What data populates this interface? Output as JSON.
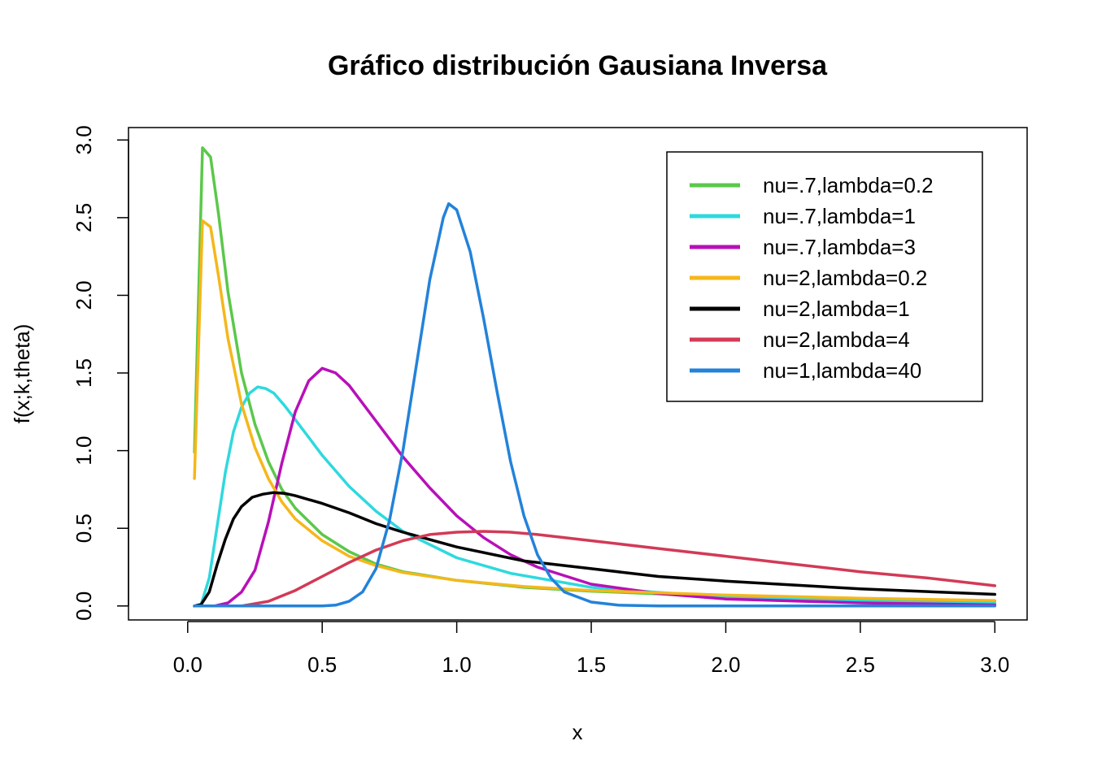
{
  "chart_data": {
    "type": "line",
    "title": "Gráfico distribución Gausiana Inversa",
    "xlabel": "x",
    "ylabel": "f(x;k,theta)",
    "xlim": [
      -0.22,
      3.12
    ],
    "ylim": [
      -0.09,
      3.08
    ],
    "x_ticks": [
      "0.0",
      "0.5",
      "1.0",
      "1.5",
      "2.0",
      "2.5",
      "3.0"
    ],
    "y_ticks": [
      "0.0",
      "0.5",
      "1.0",
      "1.5",
      "2.0",
      "2.5",
      "3.0"
    ],
    "grid": false,
    "legend_position": "top-right",
    "series": [
      {
        "name": "nu=.7,lambda=0.2",
        "color": "#5BC84A",
        "points": [
          [
            0.025,
            0.99
          ],
          [
            0.055,
            2.95
          ],
          [
            0.085,
            2.89
          ],
          [
            0.115,
            2.52
          ],
          [
            0.15,
            2.02
          ],
          [
            0.2,
            1.5
          ],
          [
            0.25,
            1.17
          ],
          [
            0.3,
            0.93
          ],
          [
            0.35,
            0.75
          ],
          [
            0.4,
            0.63
          ],
          [
            0.5,
            0.46
          ],
          [
            0.6,
            0.35
          ],
          [
            0.7,
            0.27
          ],
          [
            0.8,
            0.22
          ],
          [
            1.0,
            0.165
          ],
          [
            1.25,
            0.12
          ],
          [
            1.5,
            0.095
          ],
          [
            2.0,
            0.06
          ],
          [
            2.5,
            0.04
          ],
          [
            3.0,
            0.03
          ]
        ]
      },
      {
        "name": "nu=.7,lambda=1",
        "color": "#2ED9DE",
        "points": [
          [
            0.025,
            0.0
          ],
          [
            0.05,
            0.01
          ],
          [
            0.08,
            0.18
          ],
          [
            0.11,
            0.52
          ],
          [
            0.14,
            0.86
          ],
          [
            0.17,
            1.12
          ],
          [
            0.2,
            1.28
          ],
          [
            0.23,
            1.37
          ],
          [
            0.26,
            1.41
          ],
          [
            0.29,
            1.4
          ],
          [
            0.32,
            1.37
          ],
          [
            0.36,
            1.29
          ],
          [
            0.4,
            1.2
          ],
          [
            0.5,
            0.97
          ],
          [
            0.6,
            0.77
          ],
          [
            0.7,
            0.61
          ],
          [
            0.8,
            0.48
          ],
          [
            1.0,
            0.31
          ],
          [
            1.2,
            0.21
          ],
          [
            1.5,
            0.12
          ],
          [
            2.0,
            0.055
          ],
          [
            2.5,
            0.03
          ],
          [
            3.0,
            0.015
          ]
        ]
      },
      {
        "name": "nu=.7,lambda=3",
        "color": "#B810B8",
        "points": [
          [
            0.025,
            0.0
          ],
          [
            0.1,
            0.0
          ],
          [
            0.15,
            0.02
          ],
          [
            0.2,
            0.09
          ],
          [
            0.25,
            0.23
          ],
          [
            0.3,
            0.54
          ],
          [
            0.35,
            0.92
          ],
          [
            0.4,
            1.25
          ],
          [
            0.45,
            1.45
          ],
          [
            0.5,
            1.53
          ],
          [
            0.55,
            1.5
          ],
          [
            0.6,
            1.42
          ],
          [
            0.7,
            1.19
          ],
          [
            0.8,
            0.96
          ],
          [
            0.9,
            0.76
          ],
          [
            1.0,
            0.58
          ],
          [
            1.1,
            0.44
          ],
          [
            1.2,
            0.33
          ],
          [
            1.3,
            0.25
          ],
          [
            1.5,
            0.14
          ],
          [
            1.75,
            0.08
          ],
          [
            2.0,
            0.045
          ],
          [
            2.5,
            0.02
          ],
          [
            3.0,
            0.007
          ]
        ]
      },
      {
        "name": "nu=2,lambda=0.2",
        "color": "#F5B71B",
        "points": [
          [
            0.025,
            0.82
          ],
          [
            0.055,
            2.48
          ],
          [
            0.085,
            2.44
          ],
          [
            0.115,
            2.12
          ],
          [
            0.15,
            1.72
          ],
          [
            0.2,
            1.3
          ],
          [
            0.25,
            1.02
          ],
          [
            0.3,
            0.82
          ],
          [
            0.35,
            0.67
          ],
          [
            0.4,
            0.56
          ],
          [
            0.5,
            0.42
          ],
          [
            0.6,
            0.32
          ],
          [
            0.7,
            0.26
          ],
          [
            0.8,
            0.215
          ],
          [
            1.0,
            0.165
          ],
          [
            1.25,
            0.125
          ],
          [
            1.5,
            0.1
          ],
          [
            2.0,
            0.07
          ],
          [
            2.5,
            0.05
          ],
          [
            3.0,
            0.035
          ]
        ]
      },
      {
        "name": "nu=2,lambda=1",
        "color": "#000000",
        "points": [
          [
            0.025,
            0.0
          ],
          [
            0.05,
            0.01
          ],
          [
            0.08,
            0.09
          ],
          [
            0.11,
            0.27
          ],
          [
            0.14,
            0.43
          ],
          [
            0.17,
            0.56
          ],
          [
            0.2,
            0.64
          ],
          [
            0.24,
            0.7
          ],
          [
            0.28,
            0.72
          ],
          [
            0.32,
            0.73
          ],
          [
            0.36,
            0.725
          ],
          [
            0.4,
            0.71
          ],
          [
            0.5,
            0.66
          ],
          [
            0.6,
            0.6
          ],
          [
            0.7,
            0.53
          ],
          [
            0.8,
            0.475
          ],
          [
            1.0,
            0.38
          ],
          [
            1.25,
            0.29
          ],
          [
            1.5,
            0.24
          ],
          [
            1.75,
            0.19
          ],
          [
            2.0,
            0.16
          ],
          [
            2.5,
            0.11
          ],
          [
            3.0,
            0.075
          ]
        ]
      },
      {
        "name": "nu=2,lambda=4",
        "color": "#D23A56",
        "points": [
          [
            0.025,
            0.0
          ],
          [
            0.2,
            0.0
          ],
          [
            0.3,
            0.03
          ],
          [
            0.4,
            0.1
          ],
          [
            0.5,
            0.19
          ],
          [
            0.6,
            0.28
          ],
          [
            0.7,
            0.36
          ],
          [
            0.8,
            0.42
          ],
          [
            0.9,
            0.46
          ],
          [
            1.0,
            0.475
          ],
          [
            1.1,
            0.48
          ],
          [
            1.2,
            0.475
          ],
          [
            1.3,
            0.46
          ],
          [
            1.5,
            0.42
          ],
          [
            1.75,
            0.37
          ],
          [
            2.0,
            0.32
          ],
          [
            2.25,
            0.27
          ],
          [
            2.5,
            0.22
          ],
          [
            2.75,
            0.18
          ],
          [
            3.0,
            0.13
          ]
        ]
      },
      {
        "name": "nu=1,lambda=40",
        "color": "#2382DA",
        "points": [
          [
            0.025,
            0.0
          ],
          [
            0.5,
            0.0
          ],
          [
            0.55,
            0.005
          ],
          [
            0.6,
            0.03
          ],
          [
            0.65,
            0.09
          ],
          [
            0.7,
            0.24
          ],
          [
            0.75,
            0.55
          ],
          [
            0.8,
            1.0
          ],
          [
            0.85,
            1.55
          ],
          [
            0.9,
            2.1
          ],
          [
            0.95,
            2.5
          ],
          [
            0.97,
            2.59
          ],
          [
            1.0,
            2.55
          ],
          [
            1.05,
            2.28
          ],
          [
            1.1,
            1.85
          ],
          [
            1.15,
            1.38
          ],
          [
            1.2,
            0.93
          ],
          [
            1.25,
            0.58
          ],
          [
            1.3,
            0.33
          ],
          [
            1.35,
            0.18
          ],
          [
            1.4,
            0.09
          ],
          [
            1.5,
            0.025
          ],
          [
            1.6,
            0.005
          ],
          [
            1.75,
            0.0
          ],
          [
            3.0,
            0.0
          ]
        ]
      }
    ]
  }
}
